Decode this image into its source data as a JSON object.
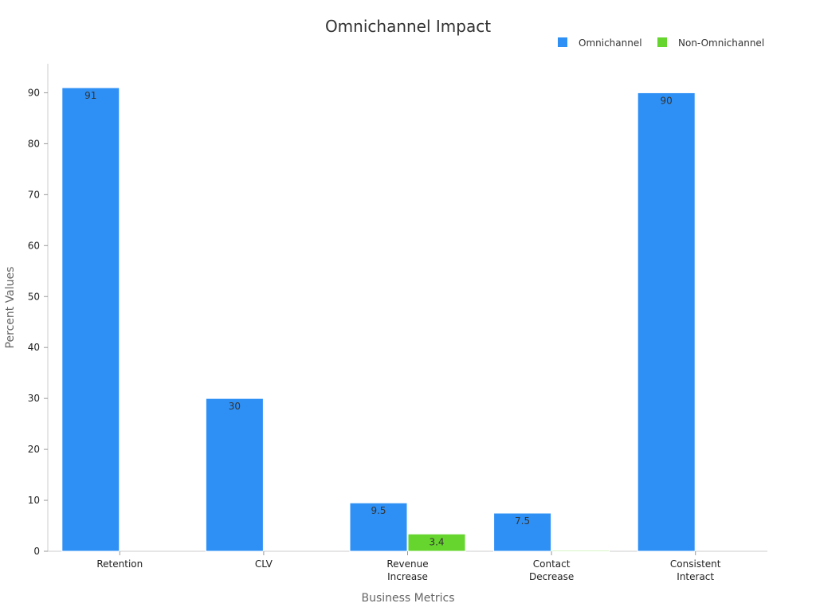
{
  "chart_data": {
    "type": "bar",
    "title": "Omnichannel Impact",
    "xlabel": "Business Metrics",
    "ylabel": "Percent Values",
    "ylim": [
      0,
      95
    ],
    "yticks": [
      0,
      10,
      20,
      30,
      40,
      50,
      60,
      70,
      80,
      90
    ],
    "legend_position": "top-right",
    "categories": [
      [
        "Retention"
      ],
      [
        "CLV"
      ],
      [
        "Revenue",
        "Increase"
      ],
      [
        "Contact",
        "Decrease"
      ],
      [
        "Consistent",
        "Interact"
      ]
    ],
    "series": [
      {
        "name": "Omnichannel",
        "color": "#2e90f5",
        "values": [
          91,
          30,
          9.5,
          7.5,
          90
        ],
        "labels": [
          "91",
          "30",
          "9.5",
          "7.5",
          "90"
        ]
      },
      {
        "name": "Non-Omnichannel",
        "color": "#66d62e",
        "values": [
          0,
          0,
          3.4,
          0.2,
          0
        ],
        "labels": [
          "",
          "",
          "3.4",
          "",
          ""
        ]
      }
    ]
  }
}
